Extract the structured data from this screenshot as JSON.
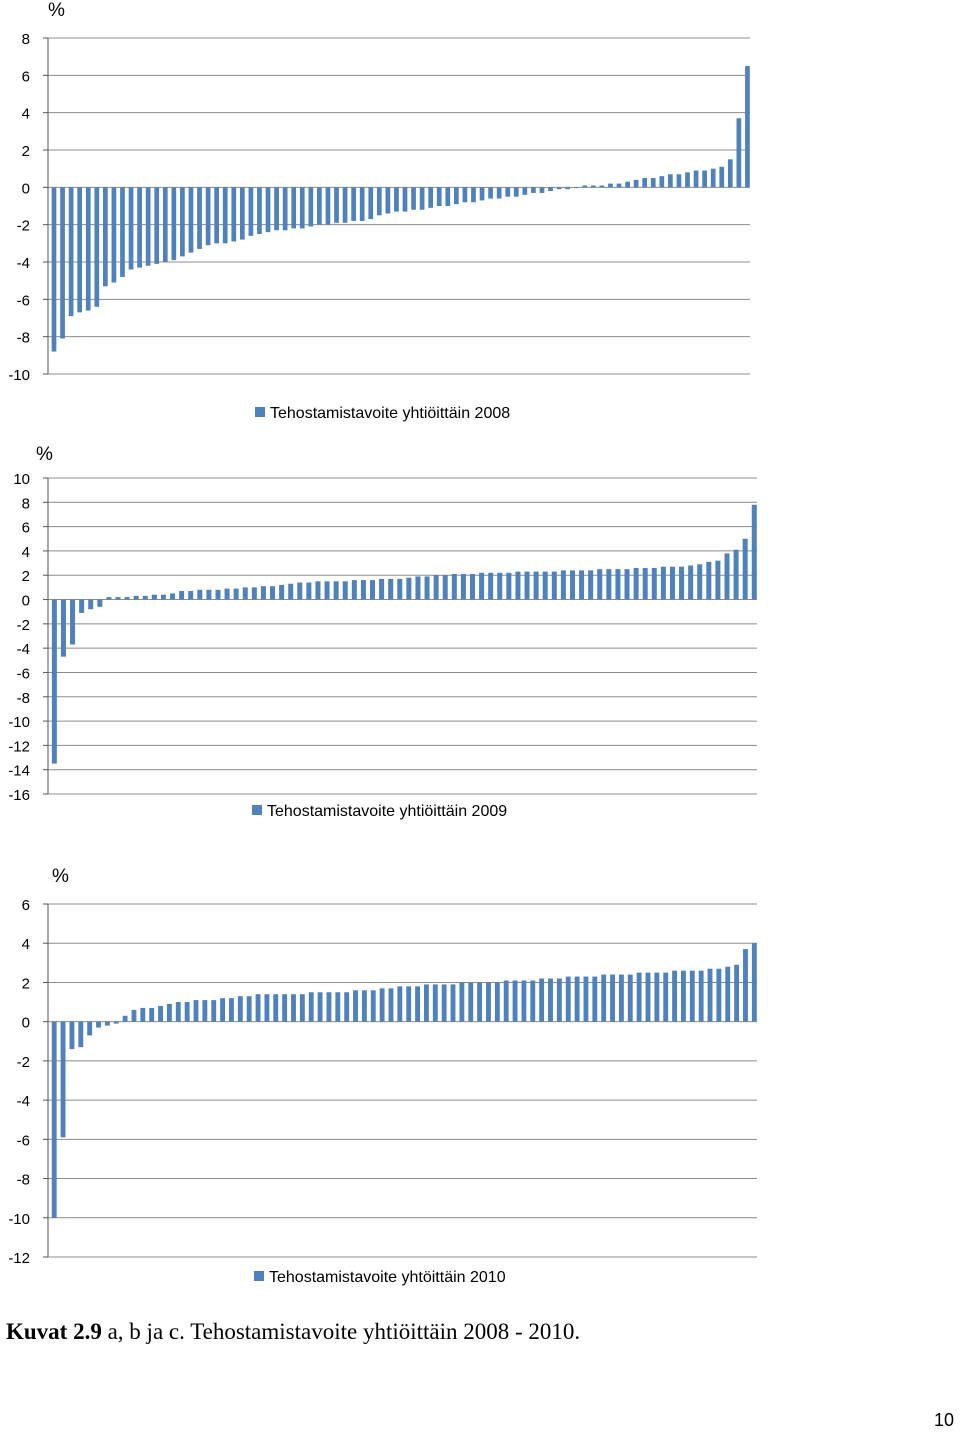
{
  "colors": {
    "bar": "#4f81bd",
    "grid": "#8c8c8c",
    "axis": "#555555"
  },
  "chart_data": [
    {
      "type": "bar",
      "unit_label": "%",
      "ylim": [
        -10,
        8
      ],
      "yticks": [
        8,
        6,
        4,
        2,
        0,
        -2,
        -4,
        -6,
        -8,
        -10
      ],
      "grid": true,
      "legend_position": "bottom-center",
      "series": [
        {
          "name": "Tehostamistavoite yhtiöittäin 2008",
          "values": [
            -8.8,
            -8.1,
            -6.9,
            -6.7,
            -6.6,
            -6.4,
            -5.3,
            -5.1,
            -4.8,
            -4.4,
            -4.3,
            -4.2,
            -4.1,
            -4.0,
            -3.9,
            -3.7,
            -3.5,
            -3.3,
            -3.1,
            -3.0,
            -3.0,
            -2.9,
            -2.8,
            -2.6,
            -2.5,
            -2.4,
            -2.3,
            -2.3,
            -2.2,
            -2.2,
            -2.1,
            -2.0,
            -2.0,
            -1.9,
            -1.9,
            -1.8,
            -1.8,
            -1.7,
            -1.5,
            -1.4,
            -1.3,
            -1.3,
            -1.2,
            -1.2,
            -1.1,
            -1.0,
            -1.0,
            -0.9,
            -0.8,
            -0.8,
            -0.7,
            -0.6,
            -0.6,
            -0.5,
            -0.5,
            -0.4,
            -0.3,
            -0.3,
            -0.2,
            -0.1,
            -0.1,
            0,
            0.1,
            0.1,
            0.1,
            0.2,
            0.2,
            0.3,
            0.4,
            0.5,
            0.5,
            0.6,
            0.7,
            0.7,
            0.8,
            0.9,
            0.9,
            1.0,
            1.1,
            1.5,
            3.7,
            6.5
          ]
        }
      ]
    },
    {
      "type": "bar",
      "unit_label": "%",
      "ylim": [
        -16,
        10
      ],
      "yticks": [
        10,
        8,
        6,
        4,
        2,
        0,
        -2,
        -4,
        -6,
        -8,
        -10,
        -12,
        -14,
        -16
      ],
      "grid": true,
      "legend_position": "bottom-center",
      "series": [
        {
          "name": "Tehostamistavoite yhtiöittäin 2009",
          "values": [
            -13.5,
            -4.7,
            -3.7,
            -1.1,
            -0.8,
            -0.6,
            0.2,
            0.2,
            0.2,
            0.3,
            0.3,
            0.4,
            0.4,
            0.5,
            0.7,
            0.7,
            0.8,
            0.8,
            0.8,
            0.9,
            0.9,
            1.0,
            1.0,
            1.1,
            1.1,
            1.2,
            1.3,
            1.4,
            1.4,
            1.5,
            1.5,
            1.5,
            1.5,
            1.6,
            1.6,
            1.6,
            1.7,
            1.7,
            1.7,
            1.8,
            1.9,
            1.9,
            2.0,
            2.0,
            2.1,
            2.1,
            2.1,
            2.2,
            2.2,
            2.2,
            2.2,
            2.3,
            2.3,
            2.3,
            2.3,
            2.3,
            2.4,
            2.4,
            2.4,
            2.4,
            2.5,
            2.5,
            2.5,
            2.5,
            2.6,
            2.6,
            2.6,
            2.7,
            2.7,
            2.7,
            2.8,
            2.9,
            3.1,
            3.2,
            3.8,
            4.1,
            5.0,
            7.8
          ]
        }
      ]
    },
    {
      "type": "bar",
      "unit_label": "%",
      "ylim": [
        -12,
        6
      ],
      "yticks": [
        6,
        4,
        2,
        0,
        -2,
        -4,
        -6,
        -8,
        -10,
        -12
      ],
      "grid": true,
      "legend_position": "bottom-center",
      "series": [
        {
          "name": "Tehostamistavoite yhtöittäin 2010",
          "values": [
            -10.0,
            -5.9,
            -1.4,
            -1.3,
            -0.7,
            -0.3,
            -0.2,
            -0.1,
            0.3,
            0.6,
            0.7,
            0.7,
            0.8,
            0.9,
            1.0,
            1.0,
            1.1,
            1.1,
            1.1,
            1.2,
            1.2,
            1.3,
            1.3,
            1.4,
            1.4,
            1.4,
            1.4,
            1.4,
            1.4,
            1.5,
            1.5,
            1.5,
            1.5,
            1.5,
            1.6,
            1.6,
            1.6,
            1.7,
            1.7,
            1.8,
            1.8,
            1.8,
            1.9,
            1.9,
            1.9,
            1.9,
            2.0,
            2.0,
            2.0,
            2.0,
            2.0,
            2.1,
            2.1,
            2.1,
            2.1,
            2.2,
            2.2,
            2.2,
            2.3,
            2.3,
            2.3,
            2.3,
            2.4,
            2.4,
            2.4,
            2.4,
            2.5,
            2.5,
            2.5,
            2.5,
            2.6,
            2.6,
            2.6,
            2.6,
            2.7,
            2.7,
            2.8,
            2.9,
            3.7,
            4.0
          ]
        }
      ]
    }
  ],
  "caption": {
    "bold": "Kuvat 2.9",
    "text": " a, b ja c. Tehostamistavoite yhtiöittäin 2008 - 2010."
  },
  "page_number": "10"
}
